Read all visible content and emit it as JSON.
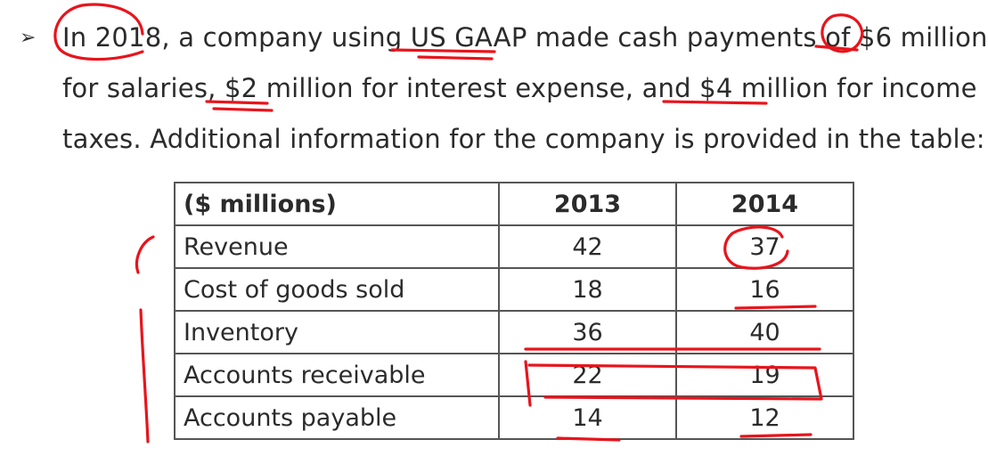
{
  "paragraph": {
    "bullet": "➢",
    "lines": [
      "In 2018, a company using US GAAP made cash payments of $6 million",
      "for salaries, $2 million for interest expense, and $4 million for income",
      "taxes. Additional information for the company is provided in the table:"
    ]
  },
  "table": {
    "headers": [
      "($ millions)",
      "2013",
      "2014"
    ],
    "rows": [
      {
        "label": "Revenue",
        "v2013": "42",
        "v2014": "37"
      },
      {
        "label": "Cost of goods sold",
        "v2013": "18",
        "v2014": "16"
      },
      {
        "label": "Inventory",
        "v2013": "36",
        "v2014": "40"
      },
      {
        "label": "Accounts receivable",
        "v2013": "22",
        "v2014": "19"
      },
      {
        "label": "Accounts payable",
        "v2013": "14",
        "v2014": "12"
      }
    ]
  },
  "annotation_color": "#e8141c"
}
